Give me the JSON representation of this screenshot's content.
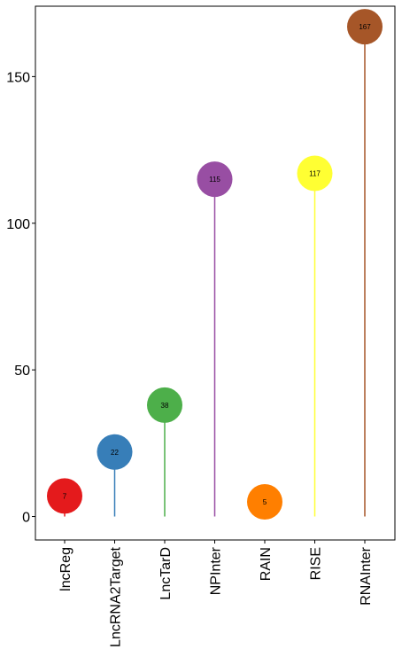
{
  "chart_data": {
    "type": "lollipop",
    "categories": [
      "lncReg",
      "LncRNA2Target",
      "LncTarD",
      "NPInter",
      "RAIN",
      "RISE",
      "RNAInter"
    ],
    "values": [
      7,
      22,
      38,
      115,
      5,
      117,
      167
    ],
    "colors": [
      "#E41A1C",
      "#377EB8",
      "#4DAF4A",
      "#984EA3",
      "#FF7F00",
      "#FFFF33",
      "#A65628"
    ],
    "ylim": [
      -8,
      174
    ],
    "yticks": [
      0,
      50,
      100,
      150
    ],
    "grid": false,
    "legend": "none",
    "data_labels": true
  }
}
